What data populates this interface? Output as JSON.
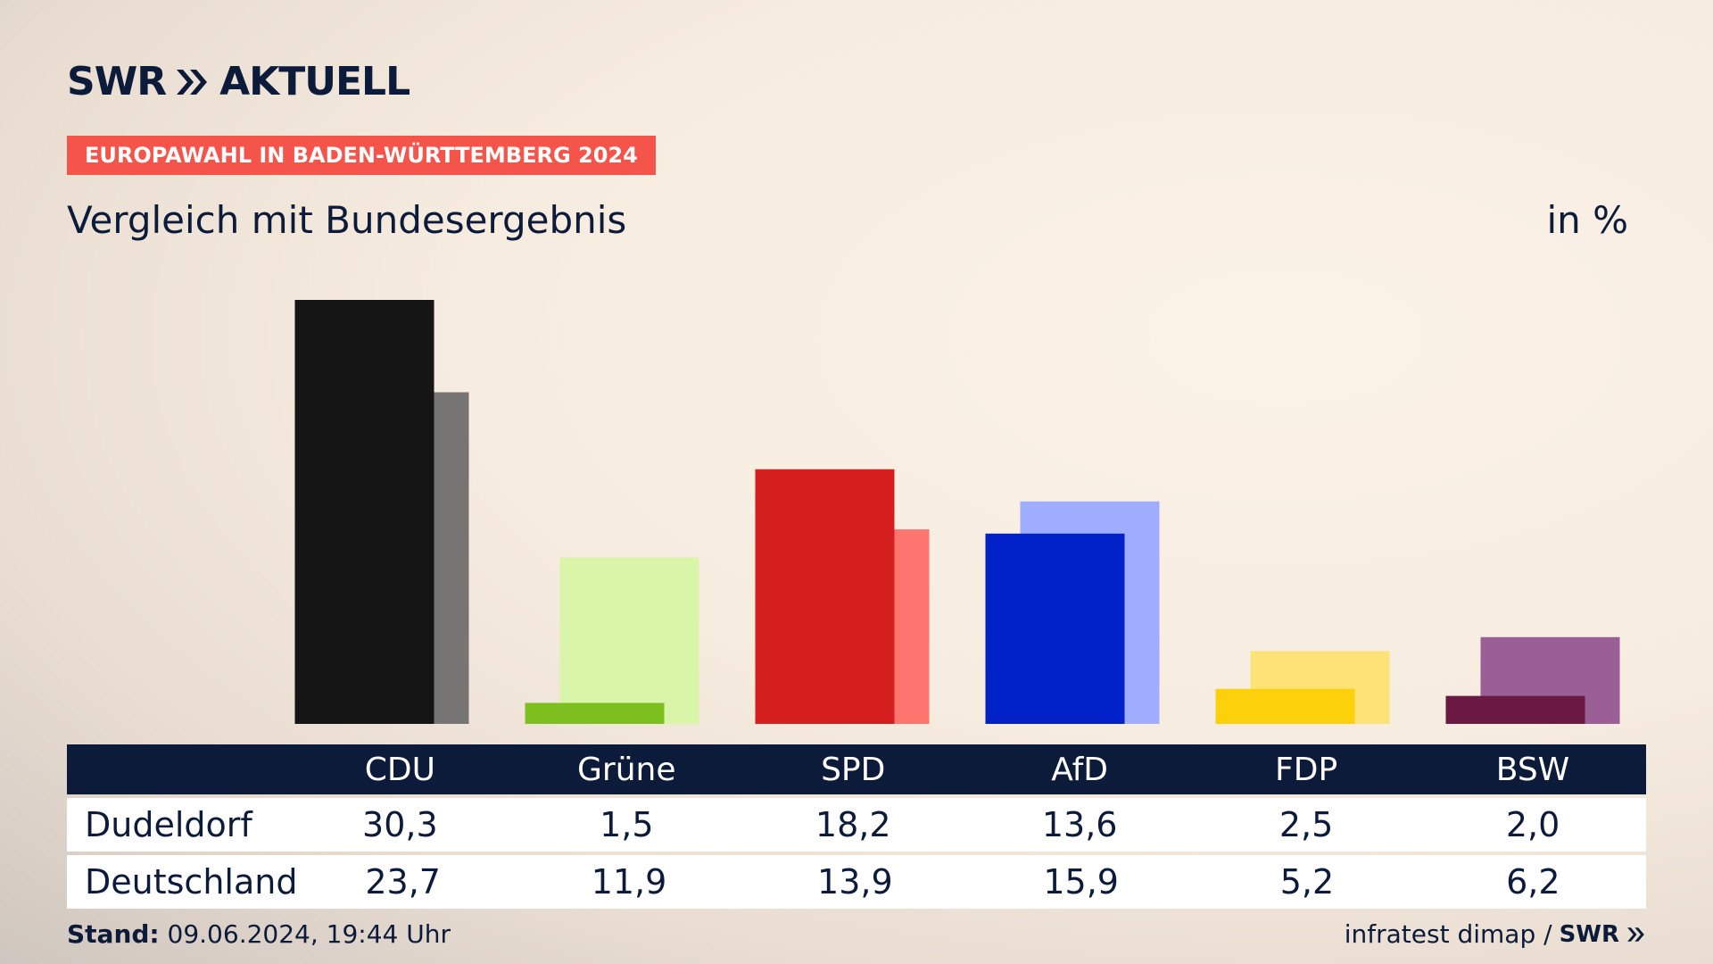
{
  "header": {
    "logo_text": "SWR",
    "logo_suffix": "AKTUELL",
    "tag": "EUROPAWAHL IN BADEN-WÜRTTEMBERG 2024",
    "subtitle": "Vergleich mit Bundesergebnis",
    "unit": "in %"
  },
  "chart_data": {
    "type": "bar",
    "categories": [
      "CDU",
      "Grüne",
      "SPD",
      "AfD",
      "FDP",
      "BSW"
    ],
    "series": [
      {
        "name": "Dudeldorf",
        "values": [
          30.3,
          1.5,
          18.2,
          13.6,
          2.5,
          2.0
        ]
      },
      {
        "name": "Deutschland",
        "values": [
          23.7,
          11.9,
          13.9,
          15.9,
          5.2,
          6.2
        ]
      }
    ],
    "colors": {
      "primary": [
        "#151515",
        "#7dbf1e",
        "#d51f1f",
        "#0021c8",
        "#fdd00c",
        "#6a1942"
      ],
      "secondary": [
        "#767574",
        "#d8f5a8",
        "#fe7570",
        "#9eadfd",
        "#fde376",
        "#9b5e96"
      ]
    },
    "ylim": [
      0,
      30.3
    ]
  },
  "table": {
    "rows": [
      {
        "name": "Dudeldorf",
        "values": [
          "30,3",
          "1,5",
          "18,2",
          "13,6",
          "2,5",
          "2,0"
        ]
      },
      {
        "name": "Deutschland",
        "values": [
          "23,7",
          "11,9",
          "13,9",
          "15,9",
          "5,2",
          "6,2"
        ]
      }
    ]
  },
  "footer": {
    "stand_label": "Stand:",
    "stand_value": "09.06.2024, 19:44 Uhr",
    "source": "infratest dimap /",
    "source_brand": "SWR"
  }
}
